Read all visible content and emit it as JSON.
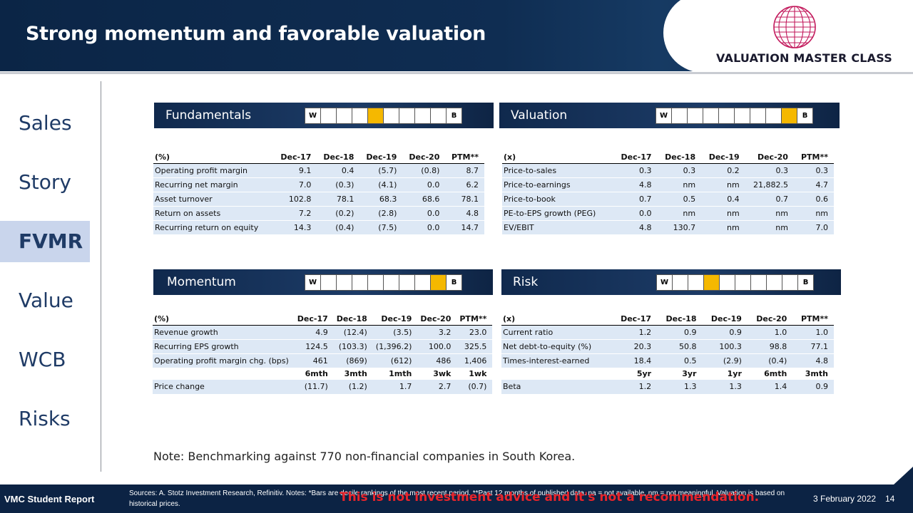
{
  "header": {
    "title": "Strong momentum and favorable valuation",
    "logo_text": "VALUATION MASTER CLASS",
    "logo_icon": "globe-icon"
  },
  "sidebar": {
    "items": [
      {
        "label": "Sales",
        "active": false
      },
      {
        "label": "Story",
        "active": false
      },
      {
        "label": "FVMR",
        "active": true
      },
      {
        "label": "Value",
        "active": false
      },
      {
        "label": "WCB",
        "active": false
      },
      {
        "label": "Risks",
        "active": false
      }
    ]
  },
  "colors": {
    "accent": "#f5b800",
    "navy": "#0f2d52",
    "shade": "#dde8f5",
    "warning": "#e8242b"
  },
  "panels": {
    "fundamentals": {
      "title": "Fundamentals",
      "rank_start": "W",
      "rank_end": "B",
      "highlight_decile": 5,
      "unit": "(%)",
      "columns": [
        "Dec-17",
        "Dec-18",
        "Dec-19",
        "Dec-20",
        "PTM**"
      ],
      "rows": [
        {
          "label": "Operating profit margin",
          "values": [
            "9.1",
            "0.4",
            "(5.7)",
            "(0.8)",
            "8.7"
          ]
        },
        {
          "label": "Recurring net margin",
          "values": [
            "7.0",
            "(0.3)",
            "(4.1)",
            "0.0",
            "6.2"
          ]
        },
        {
          "label": "Asset turnover",
          "values": [
            "102.8",
            "78.1",
            "68.3",
            "68.6",
            "78.1"
          ]
        },
        {
          "label": "Return on assets",
          "values": [
            "7.2",
            "(0.2)",
            "(2.8)",
            "0.0",
            "4.8"
          ]
        },
        {
          "label": "Recurring return on equity",
          "values": [
            "14.3",
            "(0.4)",
            "(7.5)",
            "0.0",
            "14.7"
          ]
        }
      ]
    },
    "valuation": {
      "title": "Valuation",
      "rank_start": "W",
      "rank_end": "B",
      "highlight_decile": 9,
      "unit": "(x)",
      "columns": [
        "Dec-17",
        "Dec-18",
        "Dec-19",
        "Dec-20",
        "PTM**"
      ],
      "rows": [
        {
          "label": "Price-to-sales",
          "values": [
            "0.3",
            "0.3",
            "0.2",
            "0.3",
            "0.3"
          ]
        },
        {
          "label": "Price-to-earnings",
          "values": [
            "4.8",
            "nm",
            "nm",
            "21,882.5",
            "4.7"
          ]
        },
        {
          "label": "Price-to-book",
          "values": [
            "0.7",
            "0.5",
            "0.4",
            "0.7",
            "0.6"
          ]
        },
        {
          "label": "PE-to-EPS growth (PEG)",
          "values": [
            "0.0",
            "nm",
            "nm",
            "nm",
            "nm"
          ]
        },
        {
          "label": "EV/EBIT",
          "values": [
            "4.8",
            "130.7",
            "nm",
            "nm",
            "7.0"
          ]
        }
      ]
    },
    "momentum": {
      "title": "Momentum",
      "rank_start": "W",
      "rank_end": "B",
      "highlight_decile": 9,
      "unit": "(%)",
      "columns": [
        "Dec-17",
        "Dec-18",
        "Dec-19",
        "Dec-20",
        "PTM**"
      ],
      "rows": [
        {
          "label": "Revenue growth",
          "values": [
            "4.9",
            "(12.4)",
            "(3.5)",
            "3.2",
            "23.0"
          ]
        },
        {
          "label": "Recurring EPS growth",
          "values": [
            "124.5",
            "(103.3)",
            "(1,396.2)",
            "100.0",
            "325.5"
          ]
        },
        {
          "label": "Operating profit margin chg. (bps)",
          "values": [
            "461",
            "(869)",
            "(612)",
            "486",
            "1,406"
          ]
        }
      ],
      "sub_columns": [
        "6mth",
        "3mth",
        "1mth",
        "3wk",
        "1wk"
      ],
      "sub_rows": [
        {
          "label": "Price change",
          "values": [
            "(11.7)",
            "(1.2)",
            "1.7",
            "2.7",
            "(0.7)"
          ]
        }
      ]
    },
    "risk": {
      "title": "Risk",
      "rank_start": "W",
      "rank_end": "B",
      "highlight_decile": 4,
      "unit": "(x)",
      "columns": [
        "Dec-17",
        "Dec-18",
        "Dec-19",
        "Dec-20",
        "PTM**"
      ],
      "rows": [
        {
          "label": "Current ratio",
          "values": [
            "1.2",
            "0.9",
            "0.9",
            "1.0",
            "1.0"
          ]
        },
        {
          "label": "Net debt-to-equity (%)",
          "values": [
            "20.3",
            "50.8",
            "100.3",
            "98.8",
            "77.1"
          ]
        },
        {
          "label": "Times-interest-earned",
          "values": [
            "18.4",
            "0.5",
            "(2.9)",
            "(0.4)",
            "4.8"
          ]
        }
      ],
      "sub_columns": [
        "5yr",
        "3yr",
        "1yr",
        "6mth",
        "3mth"
      ],
      "sub_rows": [
        {
          "label": "Beta",
          "values": [
            "1.2",
            "1.3",
            "1.3",
            "1.4",
            "0.9"
          ]
        }
      ]
    }
  },
  "note": "Note: Benchmarking against 770 non-financial companies in South Korea.",
  "footer": {
    "label": "VMC Student Report",
    "sources": "Sources: A. Stotz Investment Research, Refinitiv. Notes: *Bars are decile rankings of the most recent period. **Past 12 months of published data. na = not available, nm = not meaningful. Valuation is based on historical prices.",
    "warning": "This is not investment advice and it's not a recommendation.",
    "date": "3 February 2022",
    "page": "14"
  }
}
